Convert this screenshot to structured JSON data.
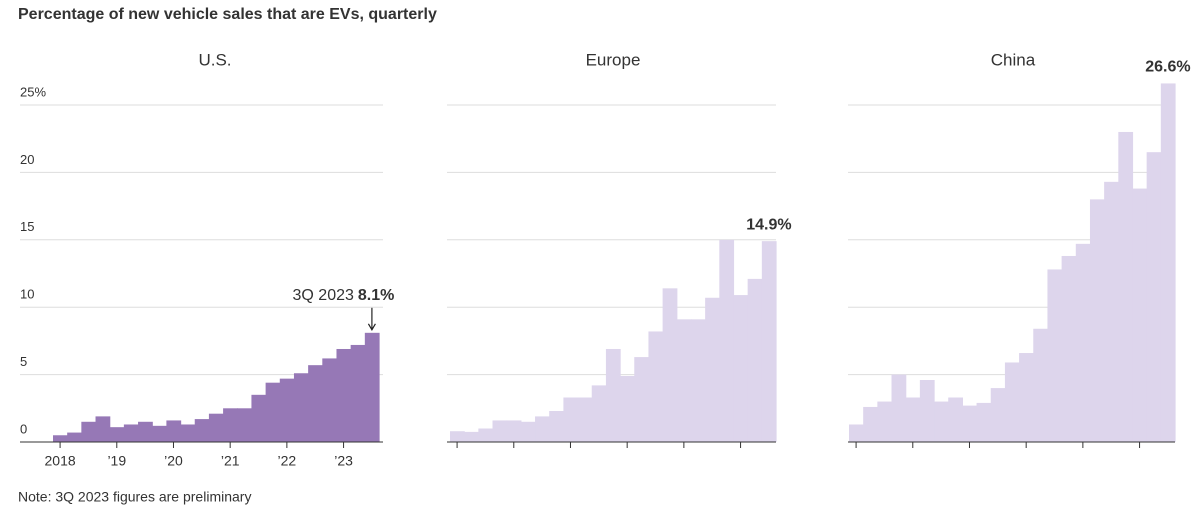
{
  "title": "Percentage of new vehicle sales that are EVs, quarterly",
  "note": "Note: 3Q 2023 figures are preliminary",
  "chart_data": [
    {
      "type": "bar",
      "title": "U.S.",
      "color": "#9678b6",
      "ylim": [
        0,
        25
      ],
      "yticks": [
        0,
        5,
        10,
        15,
        20,
        {
          "value": 25,
          "label": "25%"
        }
      ],
      "ytick_labels": true,
      "grid": true,
      "annotation": "3Q 2023",
      "categories": [
        "2018",
        null,
        null,
        null,
        "’19",
        null,
        null,
        null,
        "’20",
        null,
        null,
        null,
        "’21",
        null,
        null,
        null,
        "’22",
        null,
        null,
        null,
        "’23",
        null,
        null
      ],
      "values": [
        0.5,
        0.7,
        1.5,
        1.9,
        1.1,
        1.3,
        1.5,
        1.2,
        1.6,
        1.3,
        1.7,
        2.1,
        2.5,
        2.5,
        3.5,
        4.4,
        4.7,
        5.1,
        5.7,
        6.2,
        6.9,
        7.2,
        8.1
      ],
      "value_labels": [
        null,
        null,
        null,
        null,
        null,
        null,
        null,
        null,
        null,
        null,
        null,
        null,
        null,
        null,
        null,
        null,
        null,
        null,
        null,
        null,
        null,
        null,
        "8.1%"
      ]
    },
    {
      "type": "bar",
      "title": "Europe",
      "color": "#ddd5ec",
      "ylim": [
        0,
        25
      ],
      "yticks": [
        0,
        5,
        10,
        15,
        20,
        25
      ],
      "ytick_labels": false,
      "grid": true,
      "categories": [
        null,
        null,
        null,
        null,
        null,
        null,
        null,
        null,
        null,
        null,
        null,
        null,
        null,
        null,
        null,
        null,
        null,
        null,
        null,
        null,
        null,
        null,
        null
      ],
      "values": [
        0.8,
        0.75,
        1.0,
        1.6,
        1.6,
        1.5,
        1.9,
        2.3,
        3.3,
        3.3,
        4.2,
        6.9,
        4.9,
        6.3,
        8.2,
        11.4,
        9.1,
        9.1,
        10.7,
        15.0,
        10.9,
        12.1,
        14.9
      ],
      "value_labels": [
        null,
        null,
        null,
        null,
        null,
        null,
        null,
        null,
        null,
        null,
        null,
        null,
        null,
        null,
        null,
        null,
        null,
        null,
        null,
        null,
        null,
        null,
        "14.9%"
      ]
    },
    {
      "type": "bar",
      "title": "China",
      "color": "#ddd5ec",
      "ylim": [
        0,
        25
      ],
      "yticks": [
        0,
        5,
        10,
        15,
        20,
        25
      ],
      "ytick_labels": false,
      "grid": true,
      "categories": [
        null,
        null,
        null,
        null,
        null,
        null,
        null,
        null,
        null,
        null,
        null,
        null,
        null,
        null,
        null,
        null,
        null,
        null,
        null,
        null,
        null,
        null,
        null
      ],
      "values": [
        1.3,
        2.6,
        3.0,
        5.0,
        3.3,
        4.6,
        3.0,
        3.3,
        2.7,
        2.9,
        4.0,
        5.9,
        6.6,
        8.4,
        12.8,
        13.8,
        14.7,
        18.0,
        19.3,
        23.0,
        18.8,
        21.5,
        26.6
      ],
      "value_labels": [
        null,
        null,
        null,
        null,
        null,
        null,
        null,
        null,
        null,
        null,
        null,
        null,
        null,
        null,
        null,
        null,
        null,
        null,
        null,
        null,
        null,
        null,
        "26.6%"
      ]
    }
  ]
}
